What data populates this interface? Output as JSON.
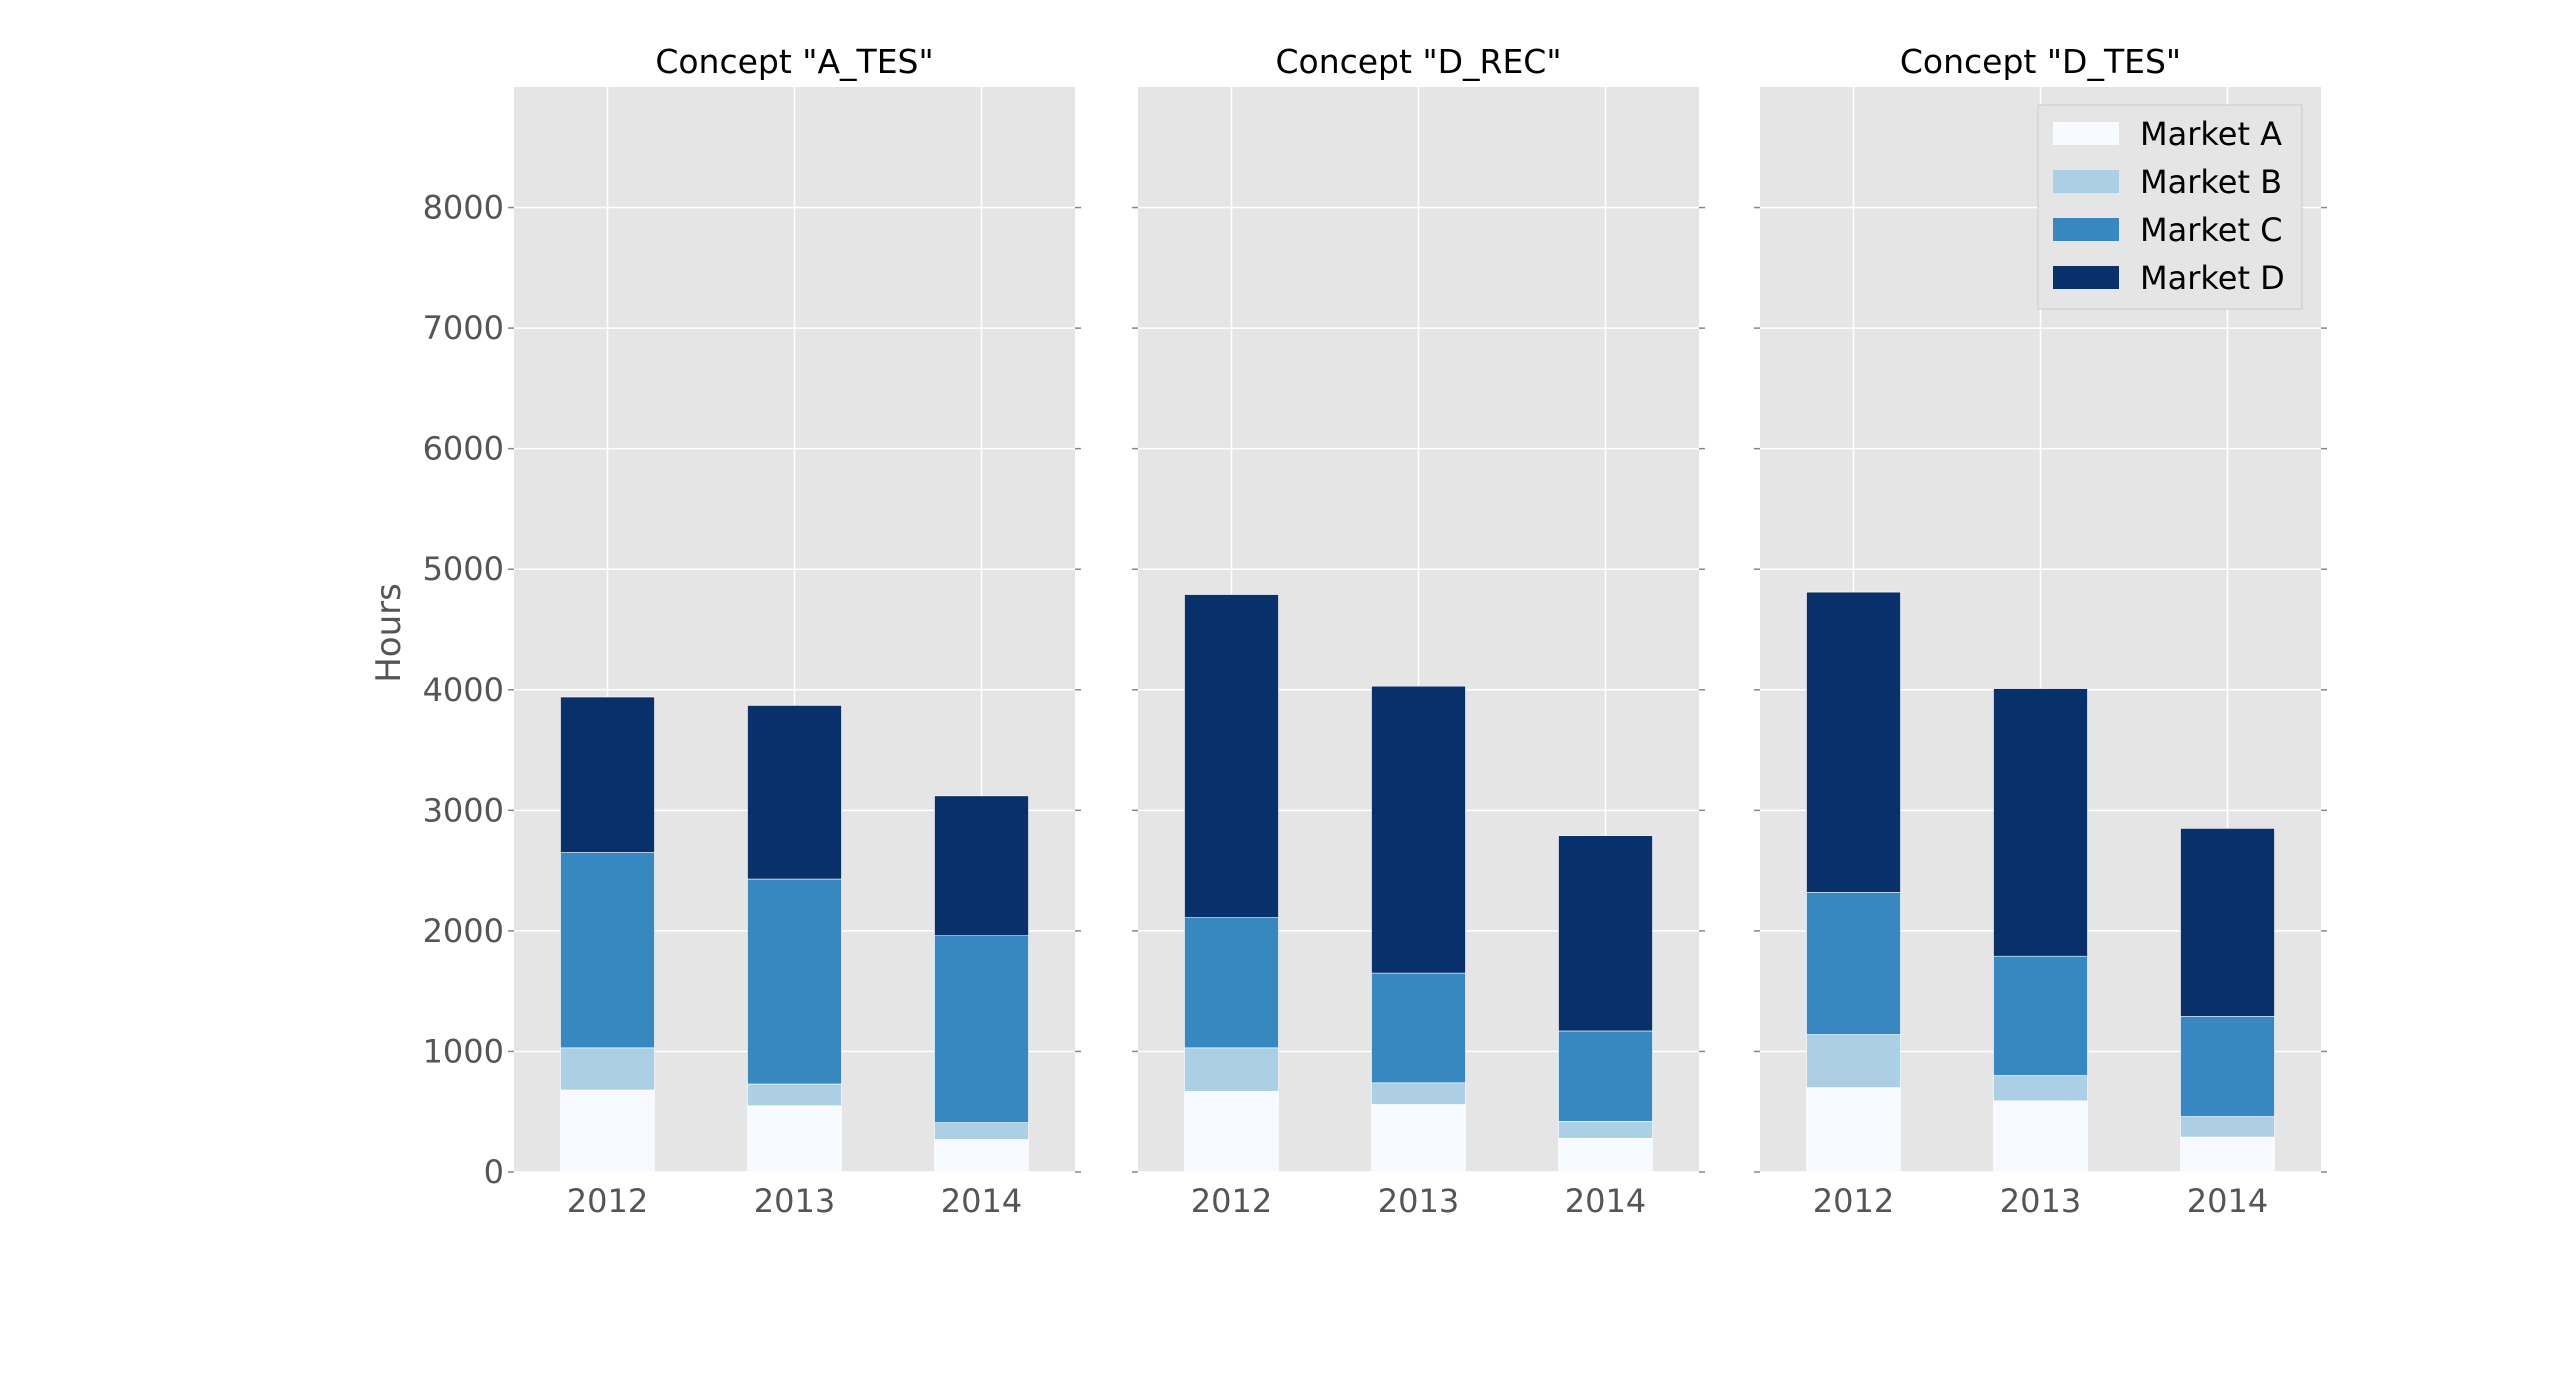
{
  "chart_data": {
    "type": "bar",
    "stacked": true,
    "ylabel": "Hours",
    "ylim": [
      0,
      9000
    ],
    "yticks": [
      0,
      1000,
      2000,
      3000,
      4000,
      5000,
      6000,
      7000,
      8000
    ],
    "grid": true,
    "legend_position": "top-right",
    "categories": [
      "2012",
      "2013",
      "2014"
    ],
    "series_meta": [
      {
        "name": "Market A",
        "color": "#f7fbff"
      },
      {
        "name": "Market B",
        "color": "#abd0e6"
      },
      {
        "name": "Market C",
        "color": "#3787c0"
      },
      {
        "name": "Market D",
        "color": "#08306b"
      }
    ],
    "panels": [
      {
        "title": "Concept \"A_TES\"",
        "series": [
          {
            "name": "Market A",
            "values": [
              680,
              550,
              270
            ]
          },
          {
            "name": "Market B",
            "values": [
              350,
              180,
              140
            ]
          },
          {
            "name": "Market C",
            "values": [
              1620,
              1700,
              1550
            ]
          },
          {
            "name": "Market D",
            "values": [
              1290,
              1440,
              1160
            ]
          }
        ]
      },
      {
        "title": "Concept \"D_REC\"",
        "series": [
          {
            "name": "Market A",
            "values": [
              670,
              560,
              280
            ]
          },
          {
            "name": "Market B",
            "values": [
              360,
              180,
              140
            ]
          },
          {
            "name": "Market C",
            "values": [
              1080,
              910,
              750
            ]
          },
          {
            "name": "Market D",
            "values": [
              2680,
              2380,
              1620
            ]
          }
        ]
      },
      {
        "title": "Concept \"D_TES\"",
        "series": [
          {
            "name": "Market A",
            "values": [
              700,
              590,
              290
            ]
          },
          {
            "name": "Market B",
            "values": [
              440,
              210,
              170
            ]
          },
          {
            "name": "Market C",
            "values": [
              1180,
              990,
              830
            ]
          },
          {
            "name": "Market D",
            "values": [
              2490,
              2220,
              1560
            ]
          }
        ]
      }
    ]
  }
}
